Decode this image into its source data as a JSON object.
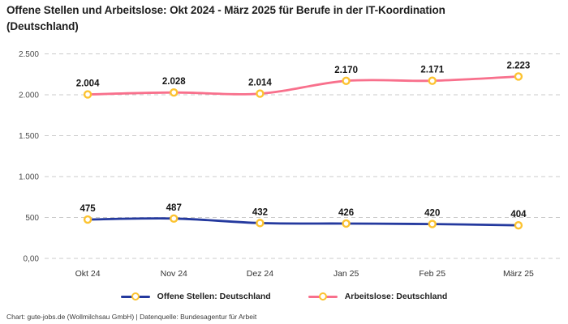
{
  "title": "Offene Stellen und Arbeitslose: Okt 2024 - März 2025 für Berufe in der IT-Koordination (Deutschland)",
  "footer": "Chart: gute-jobs.de (Wollmilchsau GmbH) | Datenquelle: Bundesagentur für Arbeit",
  "colors": {
    "open_positions_line": "#24399e",
    "unemployed_line": "#f8708c",
    "marker_ring": "#fcc331",
    "marker_fill": "#ffffff",
    "grid": "#cbcbcb"
  },
  "chart_data": {
    "type": "line",
    "title": "Offene Stellen und Arbeitslose: Okt 2024 - März 2025 für Berufe in der IT-Koordination (Deutschland)",
    "categories": [
      "Okt 24",
      "Nov 24",
      "Dez 24",
      "Jan 25",
      "Feb 25",
      "März 25"
    ],
    "series": [
      {
        "name": "Offene Stellen: Deutschland",
        "values": [
          475,
          487,
          432,
          426,
          420,
          404
        ],
        "labels": [
          "475",
          "487",
          "432",
          "426",
          "420",
          "404"
        ],
        "color": "#24399e"
      },
      {
        "name": "Arbeitslose: Deutschland",
        "values": [
          2004,
          2028,
          2014,
          2170,
          2171,
          2223
        ],
        "labels": [
          "2.004",
          "2.028",
          "2.014",
          "2.170",
          "2.171",
          "2.223"
        ],
        "color": "#f8708c"
      }
    ],
    "y_ticks": [
      {
        "value": 0,
        "label": "0,00"
      },
      {
        "value": 500,
        "label": "500"
      },
      {
        "value": 1000,
        "label": "1.000"
      },
      {
        "value": 1500,
        "label": "1.500"
      },
      {
        "value": 2000,
        "label": "2.000"
      },
      {
        "value": 2500,
        "label": "2.500"
      }
    ],
    "ylim": [
      0,
      2500
    ],
    "grid": "horizontal-dashed",
    "legend_position": "bottom",
    "marker": {
      "fill": "#ffffff",
      "stroke": "#fcc331"
    }
  }
}
